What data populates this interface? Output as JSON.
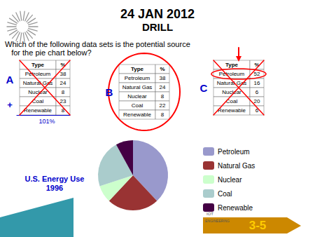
{
  "chart_data": {
    "type": "pie",
    "title": "24 JAN 2012",
    "subtitle": "DRILL",
    "categories": [
      "Petroleum",
      "Natural Gas",
      "Nuclear",
      "Coal",
      "Renewable"
    ],
    "values": [
      38,
      24,
      8,
      22,
      8
    ],
    "colors": [
      "#9999cc",
      "#993333",
      "#ccffcc",
      "#aacccc",
      "#440044"
    ],
    "legend": "right",
    "annotations": {
      "question": [
        "Which of the following data sets is the potential source",
        "   for the pie chart below?"
      ],
      "tables": [
        {
          "label": "A",
          "headers": [
            "Type",
            "%"
          ],
          "rows": [
            [
              "Petroleum",
              "38"
            ],
            [
              "Natural Gas",
              "24"
            ],
            [
              "Nuclear",
              "8"
            ],
            [
              "Coal",
              "23"
            ],
            [
              "Renewable",
              "8"
            ]
          ],
          "crossed": true,
          "sign": "+",
          "sum": "101%"
        },
        {
          "label": "B",
          "headers": [
            "Type",
            "%"
          ],
          "rows": [
            [
              "Petroleum",
              "38"
            ],
            [
              "Natural Gas",
              "24"
            ],
            [
              "Nuclear",
              "8"
            ],
            [
              "Coal",
              "22"
            ],
            [
              "Renewable",
              "8"
            ]
          ],
          "circled": true
        },
        {
          "label": "C",
          "headers": [
            "Type",
            "%"
          ],
          "rows": [
            [
              "Petroleum",
              "52"
            ],
            [
              "Natural Gas",
              "16"
            ],
            [
              "Nuclear",
              "6"
            ],
            [
              "Coal",
              "20"
            ],
            [
              "Renewable",
              "6"
            ]
          ],
          "crossed": true,
          "arrow": true,
          "circle_row": 0
        }
      ],
      "caption": "U.S. Energy Use\n1996",
      "slide_label": "3-5",
      "logo": [
        "IOT",
        "ENGINEERING"
      ]
    }
  }
}
